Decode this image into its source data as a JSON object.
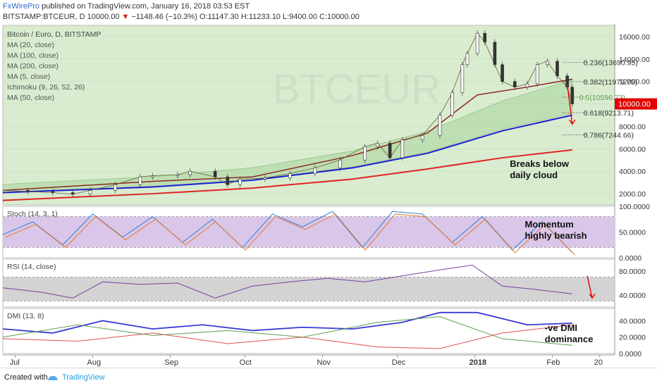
{
  "header": {
    "publisher": "FxWirePro",
    "published_text": "published on TradingView.com, January 16, 2018 03:53 EST",
    "symbol": "BITSTAMP:BTCEUR, D",
    "last": "10000.00",
    "change": "−1148.46 (−10.3%)",
    "open": "O:11147.30",
    "high": "H:11233.10",
    "low": "L:9400.00",
    "close": "C:10000.00"
  },
  "colors": {
    "panel_bg": "#d9ecd0",
    "stoch_band": "#d9c6e8",
    "rsi_band": "#d3d3d3",
    "ma_fast": "#1e1ed2",
    "ma_slow": "#e02424",
    "ma_mid": "#8b1a1a",
    "price_tag": "#e00000"
  },
  "chart_data": {
    "type": "line",
    "title": "Bitcoin / Euro, D, BITSTAMP",
    "watermark": "BTCEUR",
    "legend": [
      "MA (20, close)",
      "MA (100, close)",
      "MA (200, close)",
      "MA (5, close)",
      "Ichimoku (9, 26, 52, 26)",
      "MA (50, close)"
    ],
    "price_ticks": [
      "16000.00",
      "14000.00",
      "12000.00",
      "10000.00",
      "8000.00",
      "6000.00",
      "4000.00",
      "2000.00"
    ],
    "price_ylim": [
      1000,
      17000
    ],
    "last_price_label": "10000.00",
    "fib_levels": [
      {
        "label": "0.236(13690.95)",
        "value": 13690.95
      },
      {
        "label": "0.382(11979.75)",
        "value": 11979.75
      },
      {
        "label": "0.5(10596.73)",
        "value": 10596.73
      },
      {
        "label": "0.618(9213.71)",
        "value": 9213.71
      },
      {
        "label": "0.786(7244.66)",
        "value": 7244.66
      }
    ],
    "price_series": [
      {
        "day": 0,
        "value": 2300
      },
      {
        "day": 10,
        "value": 2200
      },
      {
        "day": 20,
        "value": 2100
      },
      {
        "day": 28,
        "value": 1950
      },
      {
        "day": 35,
        "value": 2300
      },
      {
        "day": 45,
        "value": 2800
      },
      {
        "day": 55,
        "value": 3500
      },
      {
        "day": 60,
        "value": 3600
      },
      {
        "day": 70,
        "value": 3700
      },
      {
        "day": 75,
        "value": 4000
      },
      {
        "day": 85,
        "value": 3500
      },
      {
        "day": 90,
        "value": 2800
      },
      {
        "day": 95,
        "value": 3300
      },
      {
        "day": 105,
        "value": 3400
      },
      {
        "day": 115,
        "value": 3800
      },
      {
        "day": 125,
        "value": 4300
      },
      {
        "day": 135,
        "value": 5000
      },
      {
        "day": 145,
        "value": 6200
      },
      {
        "day": 150,
        "value": 6500
      },
      {
        "day": 155,
        "value": 5200
      },
      {
        "day": 160,
        "value": 6800
      },
      {
        "day": 168,
        "value": 7200
      },
      {
        "day": 175,
        "value": 9000
      },
      {
        "day": 180,
        "value": 11000
      },
      {
        "day": 184,
        "value": 13500
      },
      {
        "day": 186,
        "value": 14500
      },
      {
        "day": 190,
        "value": 16300
      },
      {
        "day": 193,
        "value": 15500
      },
      {
        "day": 197,
        "value": 13500
      },
      {
        "day": 200,
        "value": 12000
      },
      {
        "day": 205,
        "value": 11500
      },
      {
        "day": 210,
        "value": 11800
      },
      {
        "day": 214,
        "value": 13500
      },
      {
        "day": 218,
        "value": 13800
      },
      {
        "day": 222,
        "value": 12500
      },
      {
        "day": 226,
        "value": 11500
      },
      {
        "day": 228,
        "value": 10000
      }
    ],
    "ma_lines": [
      {
        "name": "MA (50, close)",
        "color": "#1e1ed2",
        "points": [
          {
            "day": 0,
            "value": 2100
          },
          {
            "day": 60,
            "value": 2600
          },
          {
            "day": 100,
            "value": 3200
          },
          {
            "day": 140,
            "value": 4300
          },
          {
            "day": 170,
            "value": 5600
          },
          {
            "day": 200,
            "value": 7600
          },
          {
            "day": 228,
            "value": 9000
          }
        ]
      },
      {
        "name": "MA (100, close)",
        "color": "#e02424",
        "points": [
          {
            "day": 0,
            "value": 1400
          },
          {
            "day": 60,
            "value": 2000
          },
          {
            "day": 100,
            "value": 2500
          },
          {
            "day": 140,
            "value": 3300
          },
          {
            "day": 170,
            "value": 4200
          },
          {
            "day": 200,
            "value": 5200
          },
          {
            "day": 228,
            "value": 5900
          }
        ]
      },
      {
        "name": "MA (20, close)",
        "color": "#8b1a1a",
        "points": [
          {
            "day": 0,
            "value": 2300
          },
          {
            "day": 60,
            "value": 3100
          },
          {
            "day": 100,
            "value": 3500
          },
          {
            "day": 140,
            "value": 5400
          },
          {
            "day": 170,
            "value": 7400
          },
          {
            "day": 190,
            "value": 10800
          },
          {
            "day": 210,
            "value": 11500
          },
          {
            "day": 228,
            "value": 12200
          }
        ]
      }
    ],
    "x_ticks": [
      {
        "label": "Jul",
        "day": 5
      },
      {
        "label": "Aug",
        "day": 36
      },
      {
        "label": "Sep",
        "day": 67
      },
      {
        "label": "Oct",
        "day": 97
      },
      {
        "label": "Nov",
        "day": 128
      },
      {
        "label": "Dec",
        "day": 158
      },
      {
        "label": "2018",
        "day": 189
      },
      {
        "label": "Feb",
        "day": 220
      },
      {
        "label": "20",
        "day": 239
      }
    ],
    "x_range_days": [
      0,
      245
    ],
    "stoch": {
      "label": "Stoch (14, 3, 1)",
      "ticks": [
        "100.0000",
        "50.0000",
        "0.0000"
      ],
      "ylim": [
        0,
        100
      ],
      "band": [
        20,
        80
      ],
      "series": [
        {
          "day": 0,
          "value": 45
        },
        {
          "day": 12,
          "value": 70
        },
        {
          "day": 24,
          "value": 25
        },
        {
          "day": 36,
          "value": 85
        },
        {
          "day": 48,
          "value": 40
        },
        {
          "day": 60,
          "value": 80
        },
        {
          "day": 72,
          "value": 30
        },
        {
          "day": 84,
          "value": 75
        },
        {
          "day": 96,
          "value": 20
        },
        {
          "day": 108,
          "value": 85
        },
        {
          "day": 120,
          "value": 60
        },
        {
          "day": 132,
          "value": 90
        },
        {
          "day": 144,
          "value": 20
        },
        {
          "day": 156,
          "value": 90
        },
        {
          "day": 168,
          "value": 85
        },
        {
          "day": 180,
          "value": 30
        },
        {
          "day": 192,
          "value": 80
        },
        {
          "day": 204,
          "value": 15
        },
        {
          "day": 216,
          "value": 70
        },
        {
          "day": 228,
          "value": 10
        }
      ]
    },
    "rsi": {
      "label": "RSI (14, close)",
      "ticks": [
        "80.0000",
        "40.0000"
      ],
      "ylim": [
        20,
        100
      ],
      "band": [
        30,
        70
      ],
      "series": [
        {
          "day": 0,
          "value": 52
        },
        {
          "day": 15,
          "value": 45
        },
        {
          "day": 28,
          "value": 35
        },
        {
          "day": 40,
          "value": 62
        },
        {
          "day": 55,
          "value": 58
        },
        {
          "day": 70,
          "value": 60
        },
        {
          "day": 85,
          "value": 35
        },
        {
          "day": 100,
          "value": 55
        },
        {
          "day": 115,
          "value": 62
        },
        {
          "day": 130,
          "value": 68
        },
        {
          "day": 145,
          "value": 62
        },
        {
          "day": 160,
          "value": 72
        },
        {
          "day": 175,
          "value": 82
        },
        {
          "day": 188,
          "value": 90
        },
        {
          "day": 200,
          "value": 55
        },
        {
          "day": 212,
          "value": 50
        },
        {
          "day": 222,
          "value": 45
        },
        {
          "day": 228,
          "value": 42
        }
      ]
    },
    "dmi": {
      "label": "DMI (13, 8)",
      "ticks": [
        "40.0000",
        "20.0000",
        "0.0000"
      ],
      "ylim": [
        0,
        55
      ],
      "adx": [
        {
          "day": 0,
          "value": 30
        },
        {
          "day": 20,
          "value": 25
        },
        {
          "day": 40,
          "value": 40
        },
        {
          "day": 60,
          "value": 30
        },
        {
          "day": 80,
          "value": 35
        },
        {
          "day": 100,
          "value": 28
        },
        {
          "day": 120,
          "value": 32
        },
        {
          "day": 140,
          "value": 30
        },
        {
          "day": 160,
          "value": 38
        },
        {
          "day": 175,
          "value": 50
        },
        {
          "day": 190,
          "value": 50
        },
        {
          "day": 210,
          "value": 35
        },
        {
          "day": 228,
          "value": 37
        }
      ],
      "plus_di": [
        {
          "day": 0,
          "value": 20
        },
        {
          "day": 30,
          "value": 35
        },
        {
          "day": 60,
          "value": 22
        },
        {
          "day": 90,
          "value": 28
        },
        {
          "day": 120,
          "value": 20
        },
        {
          "day": 150,
          "value": 38
        },
        {
          "day": 175,
          "value": 45
        },
        {
          "day": 200,
          "value": 18
        },
        {
          "day": 228,
          "value": 10
        }
      ],
      "minus_di": [
        {
          "day": 0,
          "value": 18
        },
        {
          "day": 30,
          "value": 15
        },
        {
          "day": 60,
          "value": 25
        },
        {
          "day": 90,
          "value": 12
        },
        {
          "day": 120,
          "value": 20
        },
        {
          "day": 150,
          "value": 8
        },
        {
          "day": 175,
          "value": 6
        },
        {
          "day": 200,
          "value": 25
        },
        {
          "day": 228,
          "value": 35
        }
      ]
    },
    "annotations": {
      "price": "Breaks below daily cloud",
      "stoch": "Momentum highly bearish",
      "dmi": "-ve DMI dominance"
    }
  },
  "footer": {
    "created_with": "Created with",
    "brand": "TradingView"
  }
}
